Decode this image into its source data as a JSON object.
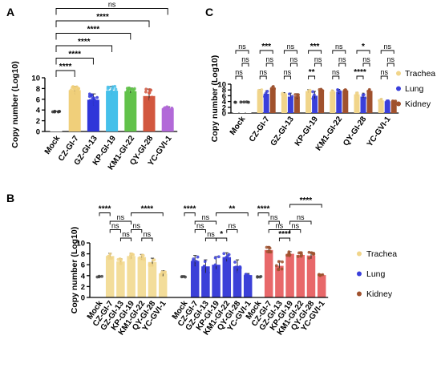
{
  "figure": {
    "panel_labels": [
      "A",
      "B",
      "C"
    ]
  },
  "colors": {
    "Mock": "#3b3b3b",
    "CZ-GI-7": "#f0cf7a",
    "GZ-GI-13": "#2f36d9",
    "KP-GI-19": "#45c0ea",
    "KM1-GI-22": "#62c24a",
    "QY-GI-28": "#d2573f",
    "YC-GVI-1": "#b269d8",
    "Trachea": "#f1d58a",
    "Lung": "#3a3fdb",
    "Kidney": "#a0512d",
    "B_mock": "#444444",
    "B_trachea": "#f3dd9a",
    "B_lung": "#3b40d8",
    "B_kidney": "#e8686a"
  },
  "chart_data": [
    {
      "panel": "A",
      "type": "bar",
      "categories": [
        "Mock",
        "CZ-GI-7",
        "GZ-GI-13",
        "KP-GI-19",
        "KM1-GI-22",
        "QY-GI-28",
        "YC-GVI-1"
      ],
      "values": [
        3.7,
        7.7,
        5.9,
        7.6,
        7.5,
        6.6,
        4.3
      ],
      "errors": [
        0.1,
        0.7,
        1.1,
        0.8,
        0.6,
        1.3,
        0.3
      ],
      "xlabel": "",
      "ylabel": "Copy number (Log10)",
      "ylim": [
        0,
        10
      ],
      "yticks": [
        0,
        2,
        4,
        6,
        8,
        10
      ],
      "comparisons": [
        {
          "from": 0,
          "to": 1,
          "label": "****"
        },
        {
          "from": 0,
          "to": 2,
          "label": "****"
        },
        {
          "from": 0,
          "to": 3,
          "label": "****"
        },
        {
          "from": 0,
          "to": 4,
          "label": "****"
        },
        {
          "from": 0,
          "to": 5,
          "label": "****"
        },
        {
          "from": 0,
          "to": 6,
          "label": "ns"
        }
      ]
    },
    {
      "panel": "B",
      "type": "bar",
      "groups": [
        {
          "name": "Trachea",
          "categories": [
            "Mock",
            "CZ-GI-7",
            "GZ-GI-13",
            "KP-GI-19",
            "KM1-GI-22",
            "QY-GI-28",
            "YC-GVI-1"
          ],
          "values": [
            3.8,
            7.6,
            6.6,
            7.6,
            7.4,
            6.5,
            4.4
          ],
          "errors": [
            0.1,
            0.5,
            0.5,
            0.5,
            0.5,
            0.7,
            0.5
          ]
        },
        {
          "name": "Lung",
          "categories": [
            "Mock",
            "CZ-GI-7",
            "GZ-GI-13",
            "KP-GI-19",
            "KM1-GI-22",
            "QY-GI-28",
            "YC-GVI-1"
          ],
          "values": [
            3.8,
            6.7,
            5.7,
            6.0,
            7.4,
            5.7,
            4.1
          ],
          "errors": [
            0.1,
            1.0,
            1.2,
            1.5,
            0.8,
            1.2,
            0.3
          ]
        },
        {
          "name": "Kidney",
          "categories": [
            "Mock",
            "CZ-GI-7",
            "GZ-GI-13",
            "KP-GI-19",
            "KM1-GI-22",
            "QY-GI-28",
            "YC-GVI-1"
          ],
          "values": [
            3.8,
            8.7,
            5.8,
            8.0,
            7.8,
            7.7,
            4.1
          ],
          "errors": [
            0.1,
            0.6,
            0.9,
            0.4,
            0.4,
            0.6,
            0.1
          ]
        }
      ],
      "comparisons": [
        {
          "group": 0,
          "from": 0,
          "to": 1,
          "level": 5,
          "label": "****"
        },
        {
          "group": 0,
          "from": 1,
          "to": 2,
          "level": 3,
          "label": "ns"
        },
        {
          "group": 0,
          "from": 1,
          "to": 3,
          "level": 4,
          "label": "ns"
        },
        {
          "group": 0,
          "from": 2,
          "to": 3,
          "level": 2,
          "label": "ns"
        },
        {
          "group": 0,
          "from": 3,
          "to": 4,
          "level": 3,
          "label": "ns"
        },
        {
          "group": 0,
          "from": 3,
          "to": 6,
          "level": 5,
          "label": "****"
        },
        {
          "group": 0,
          "from": 4,
          "to": 5,
          "level": 2,
          "label": "ns"
        },
        {
          "group": 1,
          "from": 0,
          "to": 1,
          "level": 5,
          "label": "****"
        },
        {
          "group": 1,
          "from": 1,
          "to": 2,
          "level": 3,
          "label": "ns"
        },
        {
          "group": 1,
          "from": 1,
          "to": 3,
          "level": 4,
          "label": "ns"
        },
        {
          "group": 1,
          "from": 2,
          "to": 3,
          "level": 2,
          "label": "ns"
        },
        {
          "group": 1,
          "from": 3,
          "to": 4,
          "level": 2,
          "label": "*"
        },
        {
          "group": 1,
          "from": 3,
          "to": 6,
          "level": 5,
          "label": "**"
        },
        {
          "group": 1,
          "from": 4,
          "to": 5,
          "level": 3,
          "label": "ns"
        },
        {
          "group": 2,
          "from": 0,
          "to": 1,
          "level": 5,
          "label": "****"
        },
        {
          "group": 2,
          "from": 1,
          "to": 2,
          "level": 4,
          "label": "ns"
        },
        {
          "group": 2,
          "from": 1,
          "to": 3,
          "level": 3,
          "label": "ns"
        },
        {
          "group": 2,
          "from": 2,
          "to": 3,
          "level": 2,
          "label": "****"
        },
        {
          "group": 2,
          "from": 3,
          "to": 4,
          "level": 3,
          "label": "ns"
        },
        {
          "group": 2,
          "from": 3,
          "to": 5,
          "level": 4,
          "label": "ns"
        },
        {
          "group": 2,
          "from": 3,
          "to": 6,
          "level": 6,
          "label": "****"
        }
      ],
      "ylabel": "Copy number (Log10)",
      "ylim": [
        0,
        10
      ],
      "yticks": [
        0,
        2,
        4,
        6,
        8,
        10
      ],
      "legend": [
        "Trachea",
        "Lung",
        "Kidney"
      ]
    },
    {
      "panel": "C",
      "type": "bar",
      "categories": [
        "Mock",
        "CZ-GI-7",
        "GZ-GI-13",
        "KP-GI-19",
        "KM1-GI-22",
        "QY-GI-28",
        "YC-GVI-1"
      ],
      "series": [
        {
          "name": "Trachea",
          "values": [
            3.8,
            7.6,
            6.6,
            7.6,
            7.4,
            6.5,
            4.4
          ],
          "errors": [
            0.1,
            0.5,
            0.5,
            0.5,
            0.5,
            0.7,
            0.5
          ]
        },
        {
          "name": "Lung",
          "values": [
            3.8,
            6.7,
            5.7,
            6.0,
            7.4,
            5.7,
            4.1
          ],
          "errors": [
            0.1,
            1.0,
            1.2,
            1.5,
            0.8,
            1.2,
            0.3
          ]
        },
        {
          "name": "Kidney",
          "values": [
            3.8,
            8.7,
            5.8,
            8.0,
            7.8,
            7.7,
            4.1
          ],
          "errors": [
            0.1,
            0.6,
            0.9,
            0.4,
            0.4,
            0.6,
            0.1
          ]
        }
      ],
      "comparisons": [
        {
          "cat": 0,
          "low": "ns",
          "high": "ns",
          "top": "ns"
        },
        {
          "cat": 1,
          "low": "ns",
          "high": "ns",
          "top": "***"
        },
        {
          "cat": 2,
          "low": "ns",
          "high": "ns",
          "top": "ns"
        },
        {
          "cat": 3,
          "low": "**",
          "high": "ns",
          "top": "***"
        },
        {
          "cat": 4,
          "low": "ns",
          "high": "ns",
          "top": "ns"
        },
        {
          "cat": 5,
          "low": "****",
          "high": "ns",
          "top": "*"
        },
        {
          "cat": 6,
          "low": "ns",
          "high": "ns",
          "top": "ns"
        }
      ],
      "ylabel": "Copy number (Log10)",
      "ylim": [
        0,
        10
      ],
      "yticks": [
        0,
        2,
        4,
        6,
        8,
        10
      ],
      "legend": [
        "Trachea",
        "Lung",
        "Kidney"
      ]
    }
  ]
}
